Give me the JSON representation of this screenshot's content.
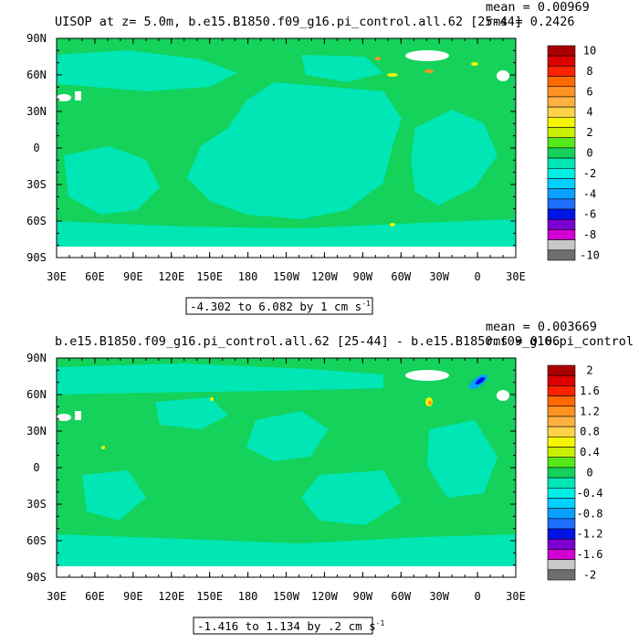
{
  "chart_data": [
    {
      "type": "heatmap",
      "title": "UISOP at z=   5.0m, b.e15.B1850.f09_g16.pi_control.all.62 [25-44]",
      "stats": {
        "mean": "mean = 0.00969",
        "rms": "rms = 0.2426"
      },
      "contour_info": "-4.302 to 6.082 by 1 cm s",
      "contour_unit_exp": "-1",
      "x_ticks": [
        "30E",
        "60E",
        "90E",
        "120E",
        "150E",
        "180",
        "150W",
        "120W",
        "90W",
        "60W",
        "30W",
        "0",
        "30E"
      ],
      "y_ticks": [
        "90N",
        "60N",
        "30N",
        "0",
        "30S",
        "60S",
        "90S"
      ],
      "xlim": [
        30,
        390
      ],
      "ylim": [
        -90,
        90
      ],
      "colorbar": {
        "labels": [
          "10",
          "8",
          "6",
          "4",
          "2",
          "0",
          "-2",
          "-4",
          "-6",
          "-8",
          "-10"
        ],
        "colors": [
          "#aa0000",
          "#dd0000",
          "#ff2200",
          "#ff6a00",
          "#ff9422",
          "#ffb040",
          "#ffd24a",
          "#f5f500",
          "#c8f000",
          "#55e81a",
          "#14d25a",
          "#00e6b4",
          "#00f0e6",
          "#00d2ff",
          "#0aa0ff",
          "#1f6eff",
          "#0014e6",
          "#7a00d2",
          "#d200d2",
          "#c8c8c8",
          "#6e6e6e"
        ]
      }
    },
    {
      "type": "heatmap",
      "title": "b.e15.B1850.f09_g16.pi_control.all.62 [25-44] - b.e15.B1850.f09_g16.pi_control",
      "stats": {
        "mean": "mean = 0.003669",
        "rms": "rms = 0.06"
      },
      "contour_info": "-1.416 to 1.134 by .2 cm s",
      "contour_unit_exp": "-1",
      "x_ticks": [
        "30E",
        "60E",
        "90E",
        "120E",
        "150E",
        "180",
        "150W",
        "120W",
        "90W",
        "60W",
        "30W",
        "0",
        "30E"
      ],
      "y_ticks": [
        "90N",
        "60N",
        "30N",
        "0",
        "30S",
        "60S",
        "90S"
      ],
      "xlim": [
        30,
        390
      ],
      "ylim": [
        -90,
        90
      ],
      "colorbar": {
        "labels": [
          "2",
          "1.6",
          "1.2",
          "0.8",
          "0.4",
          "0",
          "-0.4",
          "-0.8",
          "-1.2",
          "-1.6",
          "-2"
        ],
        "colors": [
          "#aa0000",
          "#dd0000",
          "#ff2200",
          "#ff6a00",
          "#ff9422",
          "#ffb040",
          "#ffd24a",
          "#f5f500",
          "#c8f000",
          "#55e81a",
          "#14d25a",
          "#00e6b4",
          "#00f0e6",
          "#00d2ff",
          "#0aa0ff",
          "#1f6eff",
          "#0014e6",
          "#7a00d2",
          "#d200d2",
          "#c8c8c8",
          "#6e6e6e"
        ]
      }
    }
  ],
  "colors": {
    "green": "#14d25a",
    "cyan": "#00e6b4",
    "land": "#ffffff",
    "yellow": "#f5f500",
    "orange": "#ff9422",
    "blue": "#0014e6",
    "lightblue": "#0aa0ff"
  }
}
